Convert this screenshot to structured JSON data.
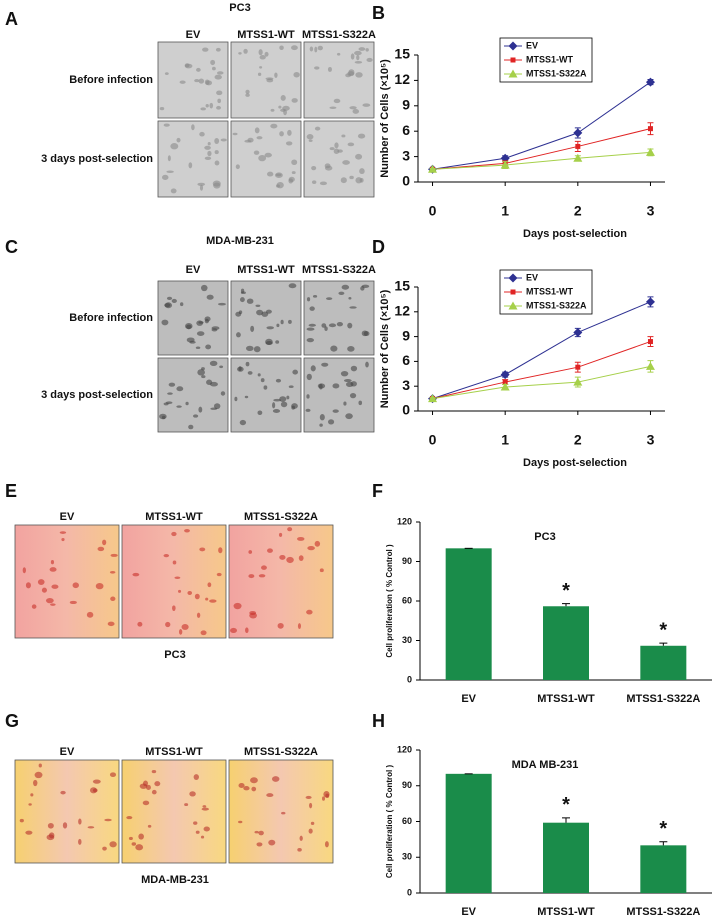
{
  "image_panels": [
    {
      "letter": "A",
      "title": "PC3",
      "columns": [
        "EV",
        "MTSS1-WT",
        "MTSS1-S322A"
      ],
      "rows": [
        "Before infection",
        "3 days post-selection"
      ]
    },
    {
      "letter": "C",
      "title": "MDA-MB-231",
      "columns": [
        "EV",
        "MTSS1-WT",
        "MTSS1-S322A"
      ],
      "rows": [
        "Before infection",
        "3 days post-selection"
      ]
    },
    {
      "letter": "E",
      "columns": [
        "EV",
        "MTSS1-WT",
        "MTSS1-S322A"
      ],
      "caption": "PC3"
    },
    {
      "letter": "G",
      "columns": [
        "EV",
        "MTSS1-WT",
        "MTSS1-S322A"
      ],
      "caption": "MDA-MB-231"
    }
  ],
  "chart_data": [
    {
      "type": "line",
      "letter": "B",
      "y_label": "Number of Cells (×10⁵)",
      "x_label": "Days post-selection",
      "x": [
        0,
        1,
        2,
        3
      ],
      "xlim": [
        -0.2,
        3.2
      ],
      "xticks": [
        0,
        1,
        2,
        3
      ],
      "ylim": [
        0,
        15
      ],
      "yticks": [
        0,
        3,
        6,
        9,
        12,
        15
      ],
      "legend": "top-left",
      "series": [
        {
          "name": "EV",
          "color": "#2e3192",
          "marker": "diamond",
          "values": [
            1.5,
            2.8,
            5.8,
            11.8
          ],
          "errors": [
            0.1,
            0.3,
            0.6,
            0.3
          ]
        },
        {
          "name": "MTSS1-WT",
          "color": "#e02424",
          "marker": "square",
          "values": [
            1.5,
            2.2,
            4.2,
            6.3
          ],
          "errors": [
            0.1,
            0.3,
            0.6,
            0.7
          ]
        },
        {
          "name": "MTSS1-S322A",
          "color": "#a6d04a",
          "marker": "triangle",
          "values": [
            1.5,
            2.0,
            2.8,
            3.5
          ],
          "errors": [
            0.1,
            0.4,
            0.3,
            0.4
          ]
        }
      ]
    },
    {
      "type": "line",
      "letter": "D",
      "y_label": "Number of Cells (×10⁵)",
      "x_label": "Days post-selection",
      "x": [
        0,
        1,
        2,
        3
      ],
      "xlim": [
        -0.2,
        3.2
      ],
      "xticks": [
        0,
        1,
        2,
        3
      ],
      "ylim": [
        0,
        15
      ],
      "yticks": [
        0,
        3,
        6,
        9,
        12,
        15
      ],
      "legend": "top-left",
      "series": [
        {
          "name": "EV",
          "color": "#2e3192",
          "marker": "diamond",
          "values": [
            1.5,
            4.4,
            9.5,
            13.2
          ],
          "errors": [
            0.1,
            0.3,
            0.5,
            0.6
          ]
        },
        {
          "name": "MTSS1-WT",
          "color": "#e02424",
          "marker": "square",
          "values": [
            1.5,
            3.5,
            5.3,
            8.4
          ],
          "errors": [
            0.1,
            0.3,
            0.6,
            0.6
          ]
        },
        {
          "name": "MTSS1-S322A",
          "color": "#a6d04a",
          "marker": "triangle",
          "values": [
            1.5,
            2.9,
            3.5,
            5.4
          ],
          "errors": [
            0.1,
            0.3,
            0.6,
            0.7
          ]
        }
      ]
    },
    {
      "type": "bar",
      "letter": "F",
      "title": "PC3",
      "y_label": "Cell proliferation ( % Control )",
      "categories": [
        "EV",
        "MTSS1-WT",
        "MTSS1-S322A"
      ],
      "values": [
        100,
        56,
        26
      ],
      "errors": [
        0,
        2,
        2
      ],
      "significance_labels": [
        null,
        "*",
        "*"
      ],
      "color": "#1a8c4a",
      "ylim": [
        0,
        120
      ],
      "yticks": [
        0,
        30,
        60,
        90,
        120
      ]
    },
    {
      "type": "bar",
      "letter": "H",
      "title": "MDA MB-231",
      "y_label": "Cell proliferation ( % Control )",
      "categories": [
        "EV",
        "MTSS1-WT",
        "MTSS1-S322A"
      ],
      "values": [
        100,
        59,
        40
      ],
      "errors": [
        0,
        4,
        3
      ],
      "significance_labels": [
        null,
        "*",
        "*"
      ],
      "color": "#1a8c4a",
      "ylim": [
        0,
        120
      ],
      "yticks": [
        0,
        30,
        60,
        90,
        120
      ]
    }
  ]
}
